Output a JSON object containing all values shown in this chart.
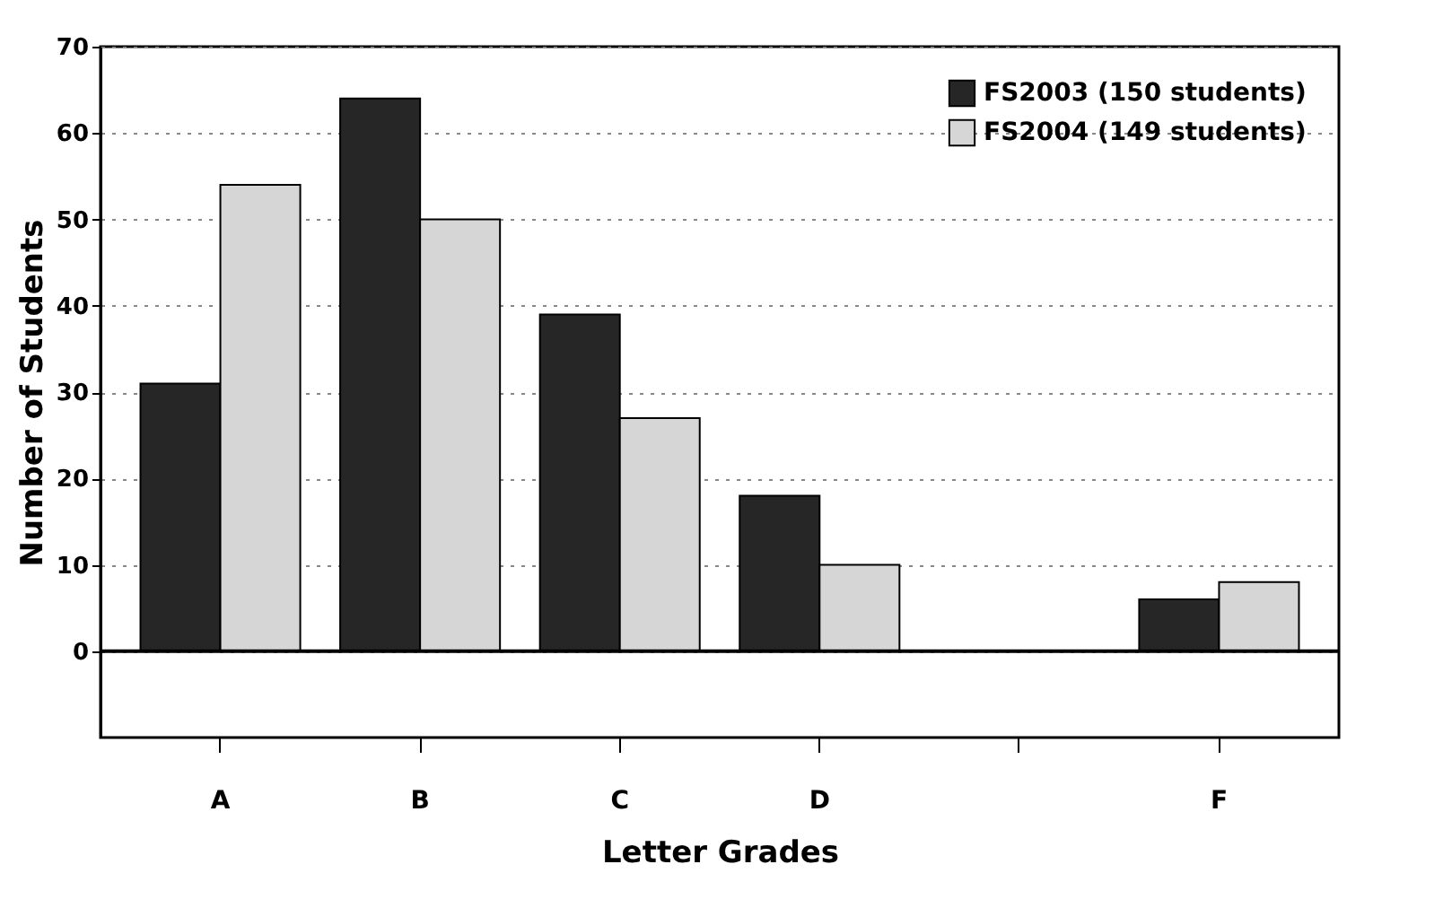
{
  "chart_data": {
    "type": "bar",
    "xlabel": "Letter Grades",
    "ylabel": "Number of Students",
    "categories": [
      "A",
      "B",
      "C",
      "D",
      null,
      "F"
    ],
    "series": [
      {
        "name": "FS2003 (150 students)",
        "color": "#262626",
        "values": [
          31,
          64,
          39,
          18,
          null,
          6
        ]
      },
      {
        "name": "FS2004 (149 students)",
        "color": "#d6d6d6",
        "values": [
          54,
          50,
          27,
          10,
          null,
          8
        ]
      }
    ],
    "ylim": [
      -10,
      70
    ],
    "yticks": [
      0,
      10,
      20,
      30,
      40,
      50,
      60,
      70
    ],
    "grid": "y",
    "legend": "top right",
    "ref_lines": [
      {
        "axis": "y",
        "value": 0,
        "color": "#000000"
      }
    ]
  }
}
